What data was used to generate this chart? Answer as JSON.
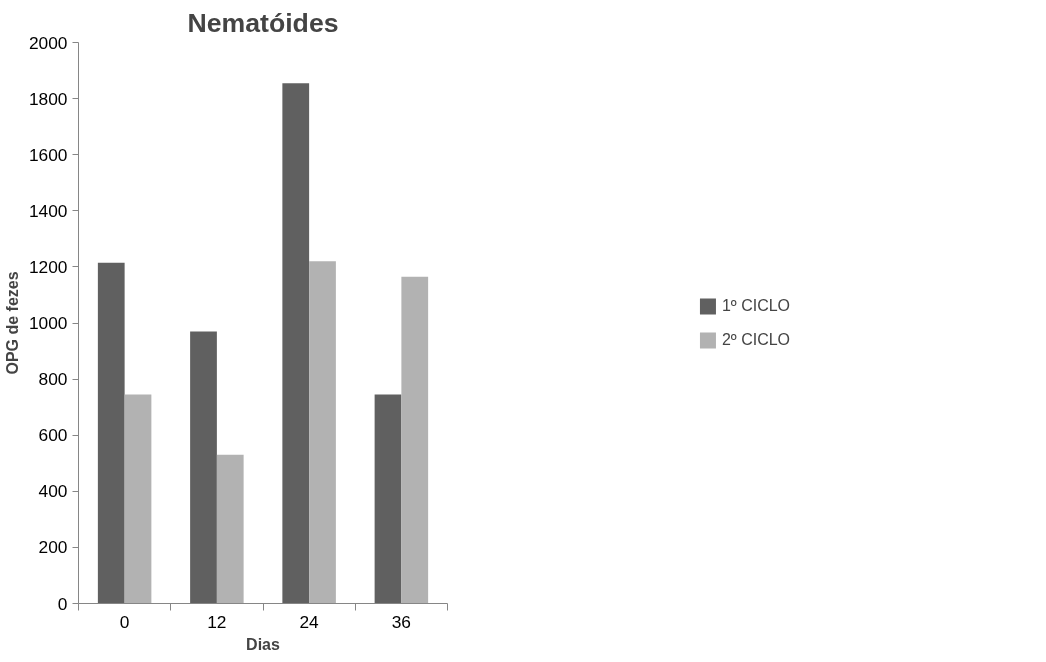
{
  "chart_data": {
    "type": "bar",
    "title": "Nematóides",
    "xlabel": "Dias",
    "ylabel": "OPG de fezes",
    "categories": [
      "0",
      "12",
      "24",
      "36"
    ],
    "series": [
      {
        "name": "1º CICLO",
        "color": "#606060",
        "values": [
          1215,
          970,
          1855,
          745
        ]
      },
      {
        "name": "2º CICLO",
        "color": "#b2b2b2",
        "values": [
          745,
          530,
          1220,
          1165
        ]
      }
    ],
    "ylim": [
      0,
      2000
    ],
    "yticks": [
      0,
      200,
      400,
      600,
      800,
      1000,
      1200,
      1400,
      1600,
      1800,
      2000
    ],
    "grid": false,
    "legend": "right"
  }
}
